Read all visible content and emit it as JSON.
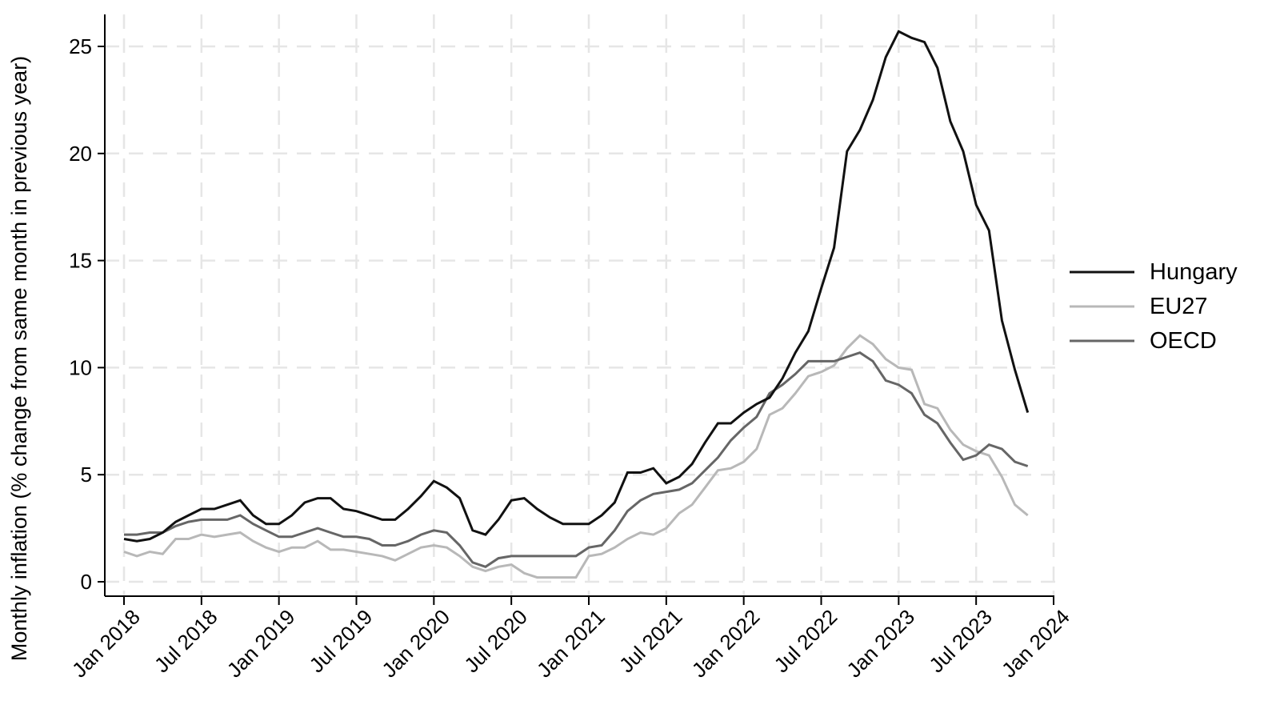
{
  "chart_data": {
    "type": "line",
    "title": "",
    "xlabel": "",
    "ylabel": "Monthly inflation (% change from same month in previous year)",
    "ylim": [
      0,
      26
    ],
    "yticks": [
      0,
      5,
      10,
      15,
      20,
      25
    ],
    "xticks": [
      "Jan 2018",
      "Jul 2018",
      "Jan 2019",
      "Jul 2019",
      "Jan 2020",
      "Jul 2020",
      "Jan 2021",
      "Jul 2021",
      "Jan 2022",
      "Jul 2022",
      "Jan 2023",
      "Jul 2023",
      "Jan 2024"
    ],
    "grid": true,
    "legend_position": "right",
    "x_start": "Jan 2018",
    "x_frequency": "monthly",
    "series": [
      {
        "name": "Hungary",
        "color": "#111111",
        "values": [
          2.0,
          1.9,
          2.0,
          2.3,
          2.8,
          3.1,
          3.4,
          3.4,
          3.6,
          3.8,
          3.1,
          2.7,
          2.7,
          3.1,
          3.7,
          3.9,
          3.9,
          3.4,
          3.3,
          3.1,
          2.9,
          2.9,
          3.4,
          4.0,
          4.7,
          4.4,
          3.9,
          2.4,
          2.2,
          2.9,
          3.8,
          3.9,
          3.4,
          3.0,
          2.7,
          2.7,
          2.7,
          3.1,
          3.7,
          5.1,
          5.1,
          5.3,
          4.6,
          4.9,
          5.5,
          6.5,
          7.4,
          7.4,
          7.9,
          8.3,
          8.6,
          9.5,
          10.7,
          11.7,
          13.7,
          15.6,
          20.1,
          21.1,
          22.5,
          24.5,
          25.7,
          25.4,
          25.2,
          24.0,
          21.5,
          20.1,
          17.6,
          16.4,
          12.2,
          9.9,
          7.9
        ]
      },
      {
        "name": "EU27",
        "color": "#b8b8b8",
        "values": [
          1.4,
          1.2,
          1.4,
          1.3,
          2.0,
          2.0,
          2.2,
          2.1,
          2.2,
          2.3,
          1.9,
          1.6,
          1.4,
          1.6,
          1.6,
          1.9,
          1.5,
          1.5,
          1.4,
          1.3,
          1.2,
          1.0,
          1.3,
          1.6,
          1.7,
          1.6,
          1.2,
          0.7,
          0.5,
          0.7,
          0.8,
          0.4,
          0.2,
          0.2,
          0.2,
          0.2,
          1.2,
          1.3,
          1.6,
          2.0,
          2.3,
          2.2,
          2.5,
          3.2,
          3.6,
          4.4,
          5.2,
          5.3,
          5.6,
          6.2,
          7.8,
          8.1,
          8.8,
          9.6,
          9.8,
          10.1,
          10.9,
          11.5,
          11.1,
          10.4,
          10.0,
          9.9,
          8.3,
          8.1,
          7.1,
          6.4,
          6.1,
          5.9,
          4.9,
          3.6,
          3.1
        ]
      },
      {
        "name": "OECD",
        "color": "#666666",
        "values": [
          2.2,
          2.2,
          2.3,
          2.3,
          2.6,
          2.8,
          2.9,
          2.9,
          2.9,
          3.1,
          2.7,
          2.4,
          2.1,
          2.1,
          2.3,
          2.5,
          2.3,
          2.1,
          2.1,
          2.0,
          1.7,
          1.7,
          1.9,
          2.2,
          2.4,
          2.3,
          1.7,
          0.9,
          0.7,
          1.1,
          1.2,
          1.2,
          1.2,
          1.2,
          1.2,
          1.2,
          1.6,
          1.7,
          2.4,
          3.3,
          3.8,
          4.1,
          4.2,
          4.3,
          4.6,
          5.2,
          5.8,
          6.6,
          7.2,
          7.7,
          8.8,
          9.2,
          9.7,
          10.3,
          10.3,
          10.3,
          10.5,
          10.7,
          10.3,
          9.4,
          9.2,
          8.8,
          7.8,
          7.4,
          6.5,
          5.7,
          5.9,
          6.4,
          6.2,
          5.6,
          5.4
        ]
      }
    ]
  },
  "legend": {
    "items": [
      {
        "label": "Hungary",
        "color": "#111111"
      },
      {
        "label": "EU27",
        "color": "#b8b8b8"
      },
      {
        "label": "OECD",
        "color": "#666666"
      }
    ]
  },
  "axes": {
    "ylabel": "Monthly inflation (% change from same month in previous year)",
    "yticks": [
      "0",
      "5",
      "10",
      "15",
      "20",
      "25"
    ],
    "xticks": [
      "Jan 2018",
      "Jul 2018",
      "Jan 2019",
      "Jul 2019",
      "Jan 2020",
      "Jul 2020",
      "Jan 2021",
      "Jul 2021",
      "Jan 2022",
      "Jul 2022",
      "Jan 2023",
      "Jul 2023",
      "Jan 2024"
    ]
  }
}
